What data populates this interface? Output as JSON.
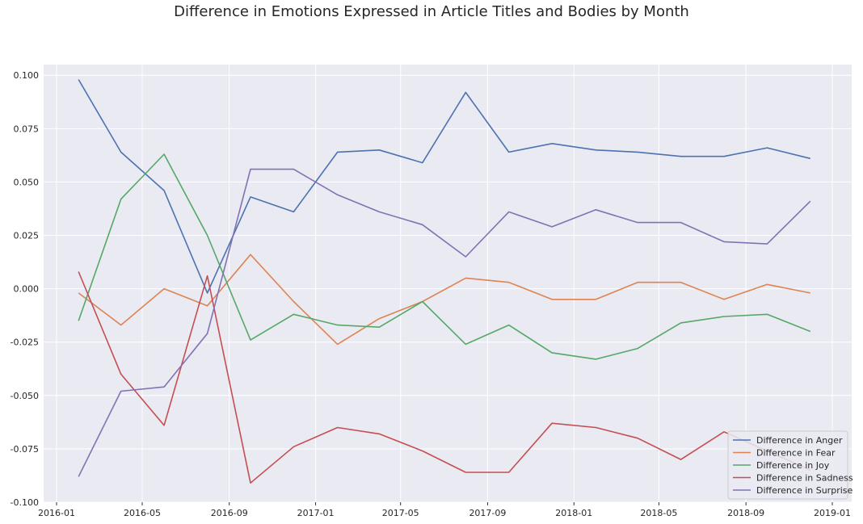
{
  "chart_data": {
    "type": "line",
    "title": "Difference in Emotions Expressed in Article Titles and Bodies by Month",
    "xlabel": "",
    "ylabel": "",
    "x": [
      "2016-02",
      "2016-04",
      "2016-06",
      "2016-08",
      "2016-10",
      "2016-12",
      "2017-02",
      "2017-04",
      "2017-06",
      "2017-08",
      "2017-10",
      "2017-12",
      "2018-02",
      "2018-04",
      "2018-06",
      "2018-08",
      "2018-10",
      "2018-12"
    ],
    "xlim": [
      "2016-01-01",
      "2019-01-01"
    ],
    "xticks": [
      "2016-01",
      "2016-05",
      "2016-09",
      "2017-01",
      "2017-05",
      "2017-09",
      "2018-01",
      "2018-05",
      "2018-09",
      "2019-01"
    ],
    "ylim": [
      -0.1,
      0.105
    ],
    "yticks": [
      "0.100",
      "0.075",
      "0.050",
      "0.025",
      "0.000",
      "-0.025",
      "-0.050",
      "-0.075",
      "-0.100"
    ],
    "grid": true,
    "legend_position": "lower right",
    "series": [
      {
        "name": "Difference in Anger",
        "color": "#4c72b0",
        "values": [
          0.098,
          0.064,
          0.046,
          -0.002,
          0.043,
          0.036,
          0.064,
          0.065,
          0.059,
          0.092,
          0.064,
          0.068,
          0.065,
          0.064,
          0.062,
          0.062,
          0.066,
          0.061
        ]
      },
      {
        "name": "Difference in Fear",
        "color": "#dd8452",
        "values": [
          -0.002,
          -0.017,
          0.0,
          -0.008,
          0.016,
          -0.006,
          -0.026,
          -0.014,
          -0.006,
          0.005,
          0.003,
          -0.005,
          -0.005,
          0.003,
          0.003,
          -0.005,
          0.002,
          -0.002
        ]
      },
      {
        "name": "Difference in Joy",
        "color": "#55a868",
        "values": [
          -0.015,
          0.042,
          0.063,
          0.025,
          -0.024,
          -0.012,
          -0.017,
          -0.018,
          -0.006,
          -0.026,
          -0.017,
          -0.03,
          -0.033,
          -0.028,
          -0.016,
          -0.013,
          -0.012,
          -0.02
        ]
      },
      {
        "name": "Difference in Sadness",
        "color": "#c44e52",
        "values": [
          0.008,
          -0.04,
          -0.064,
          0.006,
          -0.091,
          -0.074,
          -0.065,
          -0.068,
          -0.076,
          -0.086,
          -0.086,
          -0.063,
          -0.065,
          -0.07,
          -0.08,
          -0.067,
          -0.076,
          -0.085
        ]
      },
      {
        "name": "Difference in Surprise",
        "color": "#8172b3",
        "values": [
          -0.088,
          -0.048,
          -0.046,
          -0.021,
          0.056,
          0.056,
          0.044,
          0.036,
          0.03,
          0.015,
          0.036,
          0.029,
          0.037,
          0.031,
          0.031,
          0.022,
          0.021,
          0.041
        ]
      }
    ]
  }
}
